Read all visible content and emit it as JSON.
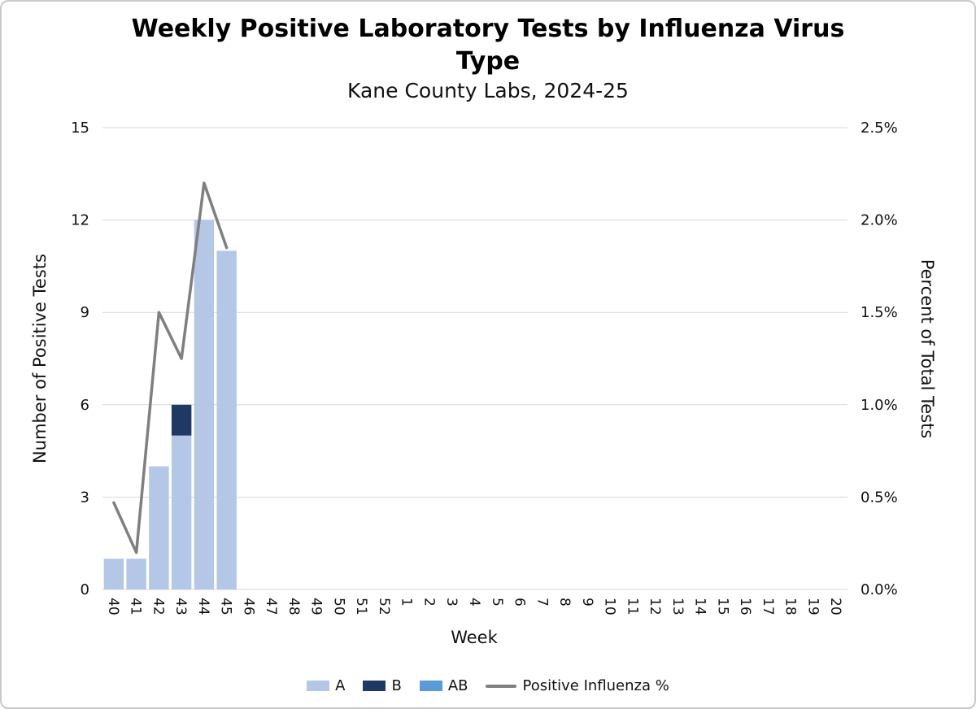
{
  "chart_data": {
    "type": "combo-bar-line",
    "title": "Weekly Positive Laboratory Tests by Influenza Virus Type",
    "subtitle": "Kane County Labs, 2024-25",
    "xlabel": "Week",
    "ylabel_left": "Number of Positive Tests",
    "ylabel_right": "Percent of Total Tests",
    "categories": [
      "40",
      "41",
      "42",
      "43",
      "44",
      "45",
      "46",
      "47",
      "48",
      "49",
      "50",
      "51",
      "52",
      "1",
      "2",
      "3",
      "4",
      "5",
      "6",
      "7",
      "8",
      "9",
      "10",
      "11",
      "12",
      "13",
      "14",
      "15",
      "16",
      "17",
      "18",
      "19",
      "20"
    ],
    "bar_series": [
      {
        "name": "A",
        "color": "#b4c7e7",
        "values": [
          1,
          1,
          4,
          5,
          12,
          11,
          0,
          0,
          0,
          0,
          0,
          0,
          0,
          0,
          0,
          0,
          0,
          0,
          0,
          0,
          0,
          0,
          0,
          0,
          0,
          0,
          0,
          0,
          0,
          0,
          0,
          0,
          0
        ]
      },
      {
        "name": "B",
        "color": "#203864",
        "values": [
          0,
          0,
          0,
          1,
          0,
          0,
          0,
          0,
          0,
          0,
          0,
          0,
          0,
          0,
          0,
          0,
          0,
          0,
          0,
          0,
          0,
          0,
          0,
          0,
          0,
          0,
          0,
          0,
          0,
          0,
          0,
          0,
          0
        ]
      },
      {
        "name": "AB",
        "color": "#5b9bd5",
        "values": [
          0,
          0,
          0,
          0,
          0,
          0,
          0,
          0,
          0,
          0,
          0,
          0,
          0,
          0,
          0,
          0,
          0,
          0,
          0,
          0,
          0,
          0,
          0,
          0,
          0,
          0,
          0,
          0,
          0,
          0,
          0,
          0,
          0
        ]
      }
    ],
    "line_series": {
      "name": "Positive Influenza %",
      "color": "#7f7f7f",
      "values": [
        0.47,
        0.2,
        1.5,
        1.25,
        2.2,
        1.85,
        null,
        null,
        null,
        null,
        null,
        null,
        null,
        null,
        null,
        null,
        null,
        null,
        null,
        null,
        null,
        null,
        null,
        null,
        null,
        null,
        null,
        null,
        null,
        null,
        null,
        null,
        null
      ]
    },
    "y_left": {
      "min": 0,
      "max": 15,
      "ticks": [
        0,
        3,
        6,
        9,
        12,
        15
      ],
      "tick_labels": [
        "0",
        "3",
        "6",
        "9",
        "12",
        "15"
      ]
    },
    "y_right": {
      "min": 0,
      "max": 2.5,
      "ticks": [
        0,
        0.5,
        1,
        1.5,
        2,
        2.5
      ],
      "tick_labels": [
        "0.0%",
        "0.5%",
        "1.0%",
        "1.5%",
        "2.0%",
        "2.5%"
      ]
    },
    "grid": true,
    "legend_position": "bottom",
    "gridline_color": "#d9d9d9"
  }
}
